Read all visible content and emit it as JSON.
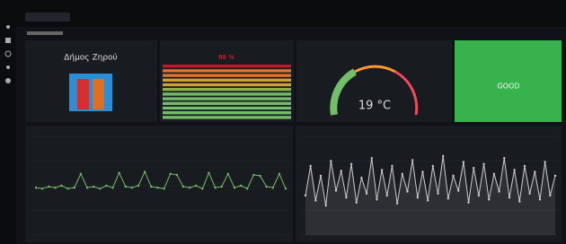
{
  "panels": [
    {
      "text": "Δήμος Ζηρού"
    },
    {
      "value_text": "88 %"
    },
    {
      "value_text": "19 °C"
    },
    {
      "status": "GOOD"
    },
    {
      "series": [
        48,
        47,
        49,
        48,
        50,
        47,
        48,
        62,
        48,
        49,
        47,
        50,
        48,
        63,
        49,
        48,
        50,
        64,
        49,
        48,
        47,
        62,
        61,
        49,
        48,
        50,
        47,
        63,
        48,
        49,
        62,
        48,
        50,
        47,
        61,
        60,
        49,
        48,
        62,
        47
      ]
    },
    {
      "series": [
        40,
        70,
        35,
        60,
        30,
        75,
        45,
        65,
        38,
        72,
        33,
        58,
        42,
        78,
        36,
        66,
        40,
        70,
        32,
        62,
        44,
        76,
        38,
        64,
        35,
        70,
        42,
        80,
        37,
        60,
        45,
        74,
        33,
        68,
        40,
        72,
        36,
        62,
        44,
        78,
        38,
        66,
        34,
        70,
        42,
        64,
        36,
        74,
        40,
        60
      ]
    }
  ]
}
